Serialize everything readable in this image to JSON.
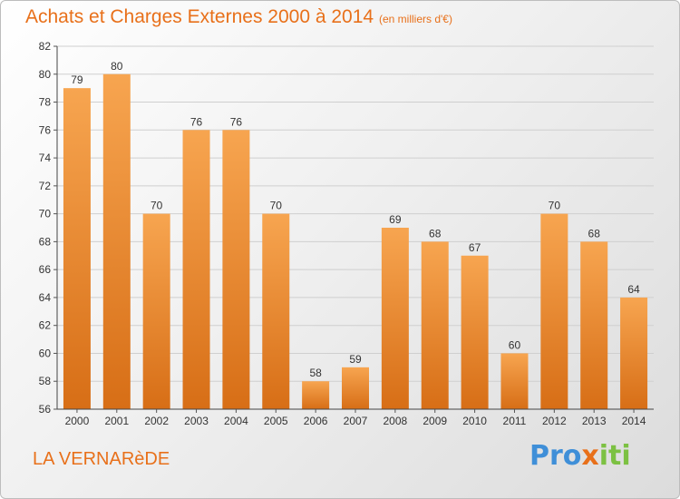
{
  "header": {
    "title": "Achats et Charges Externes 2000 à 2014",
    "subtitle": "(en milliers d'€)"
  },
  "footer": {
    "municipality": "LA VERNARèDE",
    "logo_text": "Proxiti"
  },
  "colors": {
    "accent": "#e8701a",
    "bar_top": "#f7a550",
    "bar_bottom": "#d76e16"
  },
  "chart_data": {
    "type": "bar",
    "title": "Achats et Charges Externes 2000 à 2014",
    "subtitle": "(en milliers d'€)",
    "xlabel": "",
    "ylabel": "",
    "categories": [
      "2000",
      "2001",
      "2002",
      "2003",
      "2004",
      "2005",
      "2006",
      "2007",
      "2008",
      "2009",
      "2010",
      "2011",
      "2012",
      "2013",
      "2014"
    ],
    "values": [
      79,
      80,
      70,
      76,
      76,
      70,
      58,
      59,
      69,
      68,
      67,
      60,
      70,
      68,
      64
    ],
    "ylim": [
      56,
      82
    ],
    "yticks": [
      56,
      58,
      60,
      62,
      64,
      66,
      68,
      70,
      72,
      74,
      76,
      78,
      80,
      82
    ],
    "grid": true,
    "legend": "none"
  }
}
